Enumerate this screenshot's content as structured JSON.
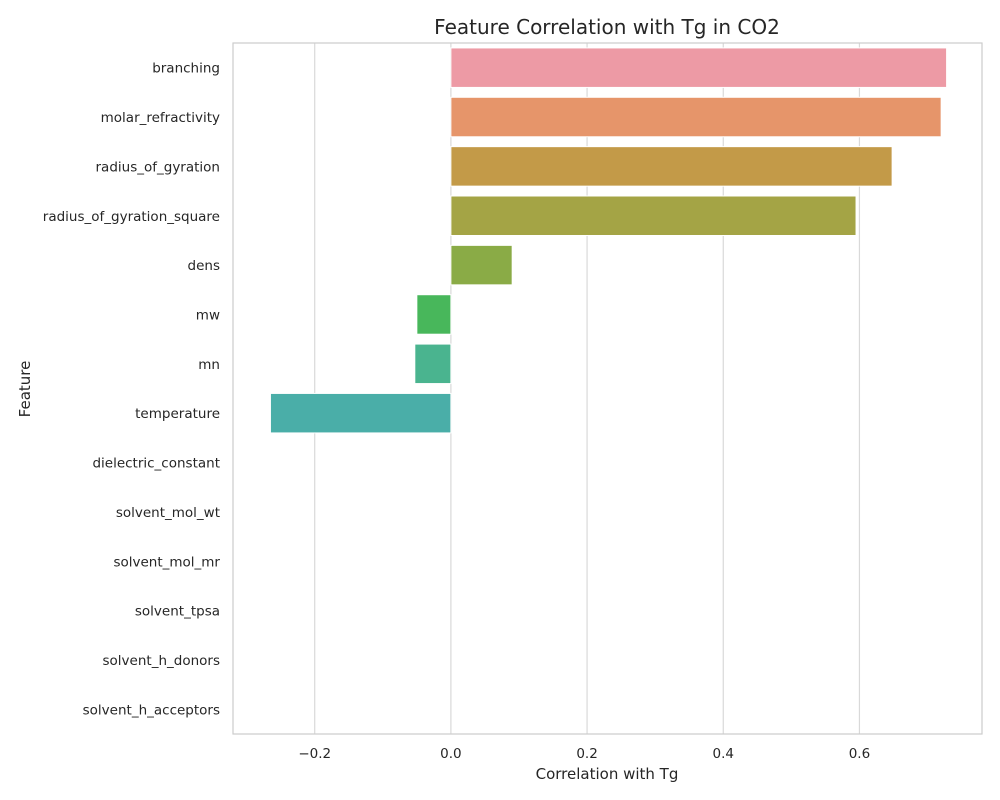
{
  "chart_data": {
    "type": "bar",
    "orientation": "horizontal",
    "title": "Feature Correlation with Tg in CO2",
    "xlabel": "Correlation with Tg",
    "ylabel": "Feature",
    "xlim": [
      -0.32,
      0.78
    ],
    "xticks": [
      -0.2,
      0.0,
      0.2,
      0.4,
      0.6
    ],
    "xtick_labels": [
      "−0.2",
      "0.0",
      "0.2",
      "0.4",
      "0.6"
    ],
    "grid": "vertical",
    "categories": [
      "branching",
      "molar_refractivity",
      "radius_of_gyration",
      "radius_of_gyration_square",
      "dens",
      "mw",
      "mn",
      "temperature",
      "dielectric_constant",
      "solvent_mol_wt",
      "solvent_mol_mr",
      "solvent_tpsa",
      "solvent_h_donors",
      "solvent_h_acceptors"
    ],
    "values": [
      0.728,
      0.72,
      0.648,
      0.595,
      0.09,
      -0.05,
      -0.053,
      -0.265,
      0,
      0,
      0,
      0,
      0,
      0
    ],
    "colors": [
      "#ed9aa5",
      "#e6956a",
      "#c39a48",
      "#a4a445",
      "#8aab46",
      "#48b75b",
      "#4ab48f",
      "#4aaea8",
      "#4aa9bb",
      "#4aa7cc",
      "#7aa6e3",
      "#b4a1ec",
      "#e292e2",
      "#ea95c1"
    ]
  }
}
